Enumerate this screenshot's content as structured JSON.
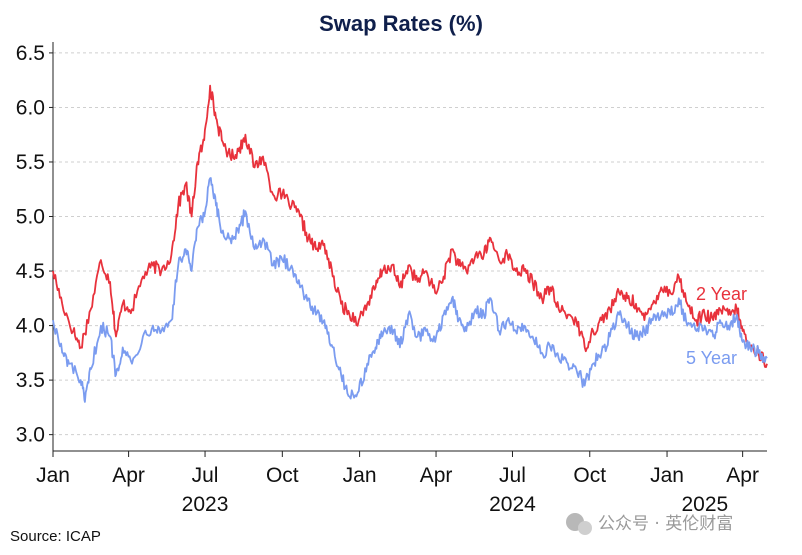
{
  "chart_data": {
    "type": "line",
    "title": "Swap Rates (%)",
    "xlabel": "",
    "ylabel": "",
    "ylim": [
      2.85,
      6.6
    ],
    "yticks": [
      3.0,
      3.5,
      4.0,
      4.5,
      5.0,
      5.5,
      6.0,
      6.5
    ],
    "xlim": [
      "2023-01-01",
      "2025-04-30"
    ],
    "xticks": [
      {
        "date": "2023-01-01",
        "label": "Jan"
      },
      {
        "date": "2023-04-01",
        "label": "Apr"
      },
      {
        "date": "2023-07-01",
        "label": "Jul"
      },
      {
        "date": "2023-10-01",
        "label": "Oct"
      },
      {
        "date": "2024-01-01",
        "label": "Jan"
      },
      {
        "date": "2024-04-01",
        "label": "Apr"
      },
      {
        "date": "2024-07-01",
        "label": "Jul"
      },
      {
        "date": "2024-10-01",
        "label": "Oct"
      },
      {
        "date": "2025-01-01",
        "label": "Jan"
      },
      {
        "date": "2025-04-01",
        "label": "Apr"
      }
    ],
    "year_labels": [
      {
        "date": "2023-07-01",
        "label": "2023"
      },
      {
        "date": "2024-07-01",
        "label": "2024"
      },
      {
        "date": "2025-02-15",
        "label": "2025"
      }
    ],
    "grid": "horizontal dashed",
    "legend": "inline labels at right end of lines",
    "series": [
      {
        "name": "2 Year",
        "color": "#e8323c",
        "points": [
          [
            "2023-01-01",
            4.5
          ],
          [
            "2023-01-12",
            4.2
          ],
          [
            "2023-01-25",
            3.95
          ],
          [
            "2023-02-03",
            3.8
          ],
          [
            "2023-02-15",
            4.15
          ],
          [
            "2023-02-27",
            4.6
          ],
          [
            "2023-03-10",
            4.4
          ],
          [
            "2023-03-17",
            3.9
          ],
          [
            "2023-03-25",
            4.2
          ],
          [
            "2023-04-05",
            4.15
          ],
          [
            "2023-04-18",
            4.45
          ],
          [
            "2023-04-30",
            4.55
          ],
          [
            "2023-05-10",
            4.5
          ],
          [
            "2023-05-22",
            4.65
          ],
          [
            "2023-05-30",
            5.1
          ],
          [
            "2023-06-08",
            5.3
          ],
          [
            "2023-06-15",
            5.0
          ],
          [
            "2023-06-22",
            5.5
          ],
          [
            "2023-06-30",
            5.7
          ],
          [
            "2023-07-07",
            6.2
          ],
          [
            "2023-07-14",
            5.9
          ],
          [
            "2023-07-21",
            5.7
          ],
          [
            "2023-07-31",
            5.55
          ],
          [
            "2023-08-10",
            5.6
          ],
          [
            "2023-08-18",
            5.75
          ],
          [
            "2023-08-29",
            5.45
          ],
          [
            "2023-09-08",
            5.55
          ],
          [
            "2023-09-20",
            5.2
          ],
          [
            "2023-10-01",
            5.2
          ],
          [
            "2023-10-12",
            5.1
          ],
          [
            "2023-10-22",
            5.0
          ],
          [
            "2023-11-01",
            4.8
          ],
          [
            "2023-11-10",
            4.7
          ],
          [
            "2023-11-20",
            4.75
          ],
          [
            "2023-11-30",
            4.45
          ],
          [
            "2023-12-10",
            4.2
          ],
          [
            "2023-12-20",
            4.1
          ],
          [
            "2023-12-31",
            4.05
          ],
          [
            "2024-01-10",
            4.2
          ],
          [
            "2024-01-20",
            4.35
          ],
          [
            "2024-01-28",
            4.5
          ],
          [
            "2024-02-08",
            4.55
          ],
          [
            "2024-02-18",
            4.35
          ],
          [
            "2024-02-28",
            4.55
          ],
          [
            "2024-03-10",
            4.4
          ],
          [
            "2024-03-20",
            4.5
          ],
          [
            "2024-03-31",
            4.3
          ],
          [
            "2024-04-10",
            4.45
          ],
          [
            "2024-04-20",
            4.7
          ],
          [
            "2024-04-28",
            4.55
          ],
          [
            "2024-05-07",
            4.5
          ],
          [
            "2024-05-18",
            4.65
          ],
          [
            "2024-05-28",
            4.65
          ],
          [
            "2024-06-05",
            4.8
          ],
          [
            "2024-06-15",
            4.6
          ],
          [
            "2024-06-25",
            4.65
          ],
          [
            "2024-07-05",
            4.5
          ],
          [
            "2024-07-15",
            4.5
          ],
          [
            "2024-07-25",
            4.4
          ],
          [
            "2024-08-05",
            4.25
          ],
          [
            "2024-08-15",
            4.35
          ],
          [
            "2024-08-25",
            4.15
          ],
          [
            "2024-09-05",
            4.1
          ],
          [
            "2024-09-15",
            4.05
          ],
          [
            "2024-09-25",
            3.8
          ],
          [
            "2024-10-05",
            3.95
          ],
          [
            "2024-10-15",
            4.05
          ],
          [
            "2024-10-25",
            4.15
          ],
          [
            "2024-11-05",
            4.3
          ],
          [
            "2024-11-15",
            4.25
          ],
          [
            "2024-11-25",
            4.2
          ],
          [
            "2024-12-05",
            4.05
          ],
          [
            "2024-12-15",
            4.2
          ],
          [
            "2024-12-25",
            4.35
          ],
          [
            "2025-01-05",
            4.3
          ],
          [
            "2025-01-15",
            4.45
          ],
          [
            "2025-01-25",
            4.2
          ],
          [
            "2025-02-05",
            4.05
          ],
          [
            "2025-02-15",
            4.1
          ],
          [
            "2025-02-25",
            4.05
          ],
          [
            "2025-03-05",
            4.15
          ],
          [
            "2025-03-15",
            4.1
          ],
          [
            "2025-03-25",
            4.15
          ],
          [
            "2025-04-01",
            3.95
          ],
          [
            "2025-04-10",
            3.8
          ],
          [
            "2025-04-20",
            3.75
          ],
          [
            "2025-04-30",
            3.65
          ]
        ]
      },
      {
        "name": "5 Year",
        "color": "#7b9cf0",
        "points": [
          [
            "2023-01-01",
            4.05
          ],
          [
            "2023-01-12",
            3.75
          ],
          [
            "2023-01-20",
            3.65
          ],
          [
            "2023-02-03",
            3.5
          ],
          [
            "2023-02-08",
            3.3
          ],
          [
            "2023-02-15",
            3.6
          ],
          [
            "2023-02-27",
            4.0
          ],
          [
            "2023-03-10",
            3.9
          ],
          [
            "2023-03-17",
            3.55
          ],
          [
            "2023-03-25",
            3.8
          ],
          [
            "2023-04-05",
            3.65
          ],
          [
            "2023-04-18",
            3.9
          ],
          [
            "2023-04-30",
            4.0
          ],
          [
            "2023-05-10",
            3.95
          ],
          [
            "2023-05-22",
            4.05
          ],
          [
            "2023-05-30",
            4.55
          ],
          [
            "2023-06-08",
            4.7
          ],
          [
            "2023-06-15",
            4.5
          ],
          [
            "2023-06-22",
            4.9
          ],
          [
            "2023-06-30",
            5.0
          ],
          [
            "2023-07-07",
            5.35
          ],
          [
            "2023-07-14",
            5.1
          ],
          [
            "2023-07-21",
            4.85
          ],
          [
            "2023-07-31",
            4.8
          ],
          [
            "2023-08-10",
            4.85
          ],
          [
            "2023-08-18",
            5.05
          ],
          [
            "2023-08-29",
            4.7
          ],
          [
            "2023-09-08",
            4.8
          ],
          [
            "2023-09-20",
            4.55
          ],
          [
            "2023-10-01",
            4.6
          ],
          [
            "2023-10-12",
            4.55
          ],
          [
            "2023-10-22",
            4.35
          ],
          [
            "2023-11-01",
            4.25
          ],
          [
            "2023-11-10",
            4.1
          ],
          [
            "2023-11-20",
            4.05
          ],
          [
            "2023-11-30",
            3.8
          ],
          [
            "2023-12-10",
            3.55
          ],
          [
            "2023-12-20",
            3.35
          ],
          [
            "2023-12-31",
            3.4
          ],
          [
            "2024-01-10",
            3.65
          ],
          [
            "2024-01-20",
            3.8
          ],
          [
            "2024-01-28",
            3.9
          ],
          [
            "2024-02-08",
            4.0
          ],
          [
            "2024-02-18",
            3.8
          ],
          [
            "2024-02-28",
            4.1
          ],
          [
            "2024-03-10",
            3.9
          ],
          [
            "2024-03-20",
            3.95
          ],
          [
            "2024-03-31",
            3.85
          ],
          [
            "2024-04-10",
            4.1
          ],
          [
            "2024-04-20",
            4.25
          ],
          [
            "2024-04-28",
            4.05
          ],
          [
            "2024-05-07",
            3.95
          ],
          [
            "2024-05-18",
            4.15
          ],
          [
            "2024-05-28",
            4.1
          ],
          [
            "2024-06-05",
            4.25
          ],
          [
            "2024-06-15",
            3.95
          ],
          [
            "2024-06-25",
            4.05
          ],
          [
            "2024-07-05",
            3.95
          ],
          [
            "2024-07-15",
            4.0
          ],
          [
            "2024-07-25",
            3.9
          ],
          [
            "2024-08-05",
            3.75
          ],
          [
            "2024-08-15",
            3.8
          ],
          [
            "2024-08-25",
            3.7
          ],
          [
            "2024-09-05",
            3.65
          ],
          [
            "2024-09-15",
            3.6
          ],
          [
            "2024-09-25",
            3.45
          ],
          [
            "2024-10-05",
            3.65
          ],
          [
            "2024-10-15",
            3.75
          ],
          [
            "2024-10-25",
            3.9
          ],
          [
            "2024-11-05",
            4.1
          ],
          [
            "2024-11-15",
            4.0
          ],
          [
            "2024-11-25",
            3.9
          ],
          [
            "2024-12-05",
            3.95
          ],
          [
            "2024-12-15",
            4.05
          ],
          [
            "2024-12-25",
            4.1
          ],
          [
            "2025-01-05",
            4.1
          ],
          [
            "2025-01-15",
            4.25
          ],
          [
            "2025-01-25",
            4.0
          ],
          [
            "2025-02-05",
            3.95
          ],
          [
            "2025-02-15",
            4.0
          ],
          [
            "2025-02-25",
            3.9
          ],
          [
            "2025-03-05",
            4.05
          ],
          [
            "2025-03-15",
            4.0
          ],
          [
            "2025-03-25",
            4.1
          ],
          [
            "2025-04-01",
            3.85
          ],
          [
            "2025-04-10",
            3.8
          ],
          [
            "2025-04-20",
            3.75
          ],
          [
            "2025-04-30",
            3.7
          ]
        ]
      }
    ],
    "annotations": [
      {
        "text": "2 Year",
        "series": "2 Year",
        "color": "#e8323c"
      },
      {
        "text": "5 Year",
        "series": "5 Year",
        "color": "#7b9cf0"
      }
    ]
  },
  "footer": {
    "source": "Source: ICAP",
    "watermark": "公众号 · 英伦财富"
  }
}
